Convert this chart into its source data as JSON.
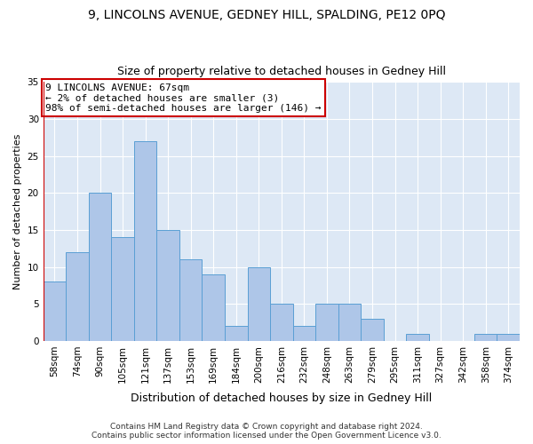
{
  "title1": "9, LINCOLNS AVENUE, GEDNEY HILL, SPALDING, PE12 0PQ",
  "title2": "Size of property relative to detached houses in Gedney Hill",
  "xlabel": "Distribution of detached houses by size in Gedney Hill",
  "ylabel": "Number of detached properties",
  "categories": [
    "58sqm",
    "74sqm",
    "90sqm",
    "105sqm",
    "121sqm",
    "137sqm",
    "153sqm",
    "169sqm",
    "184sqm",
    "200sqm",
    "216sqm",
    "232sqm",
    "248sqm",
    "263sqm",
    "279sqm",
    "295sqm",
    "311sqm",
    "327sqm",
    "342sqm",
    "358sqm",
    "374sqm"
  ],
  "values": [
    8,
    12,
    20,
    14,
    27,
    15,
    11,
    9,
    2,
    10,
    5,
    2,
    5,
    5,
    3,
    0,
    1,
    0,
    0,
    1,
    1
  ],
  "bar_color": "#aec6e8",
  "bar_edge_color": "#5a9fd4",
  "annotation_box_text": "9 LINCOLNS AVENUE: 67sqm\n← 2% of detached houses are smaller (3)\n98% of semi-detached houses are larger (146) →",
  "annotation_box_color": "#ffffff",
  "annotation_box_edge_color": "#cc0000",
  "vline_color": "#cc0000",
  "ylim": [
    0,
    35
  ],
  "yticks": [
    0,
    5,
    10,
    15,
    20,
    25,
    30,
    35
  ],
  "background_color": "#dde8f5",
  "footer_text": "Contains HM Land Registry data © Crown copyright and database right 2024.\nContains public sector information licensed under the Open Government Licence v3.0.",
  "title1_fontsize": 10,
  "title2_fontsize": 9,
  "xlabel_fontsize": 9,
  "ylabel_fontsize": 8,
  "tick_fontsize": 7.5,
  "annotation_fontsize": 8,
  "footer_fontsize": 6.5
}
